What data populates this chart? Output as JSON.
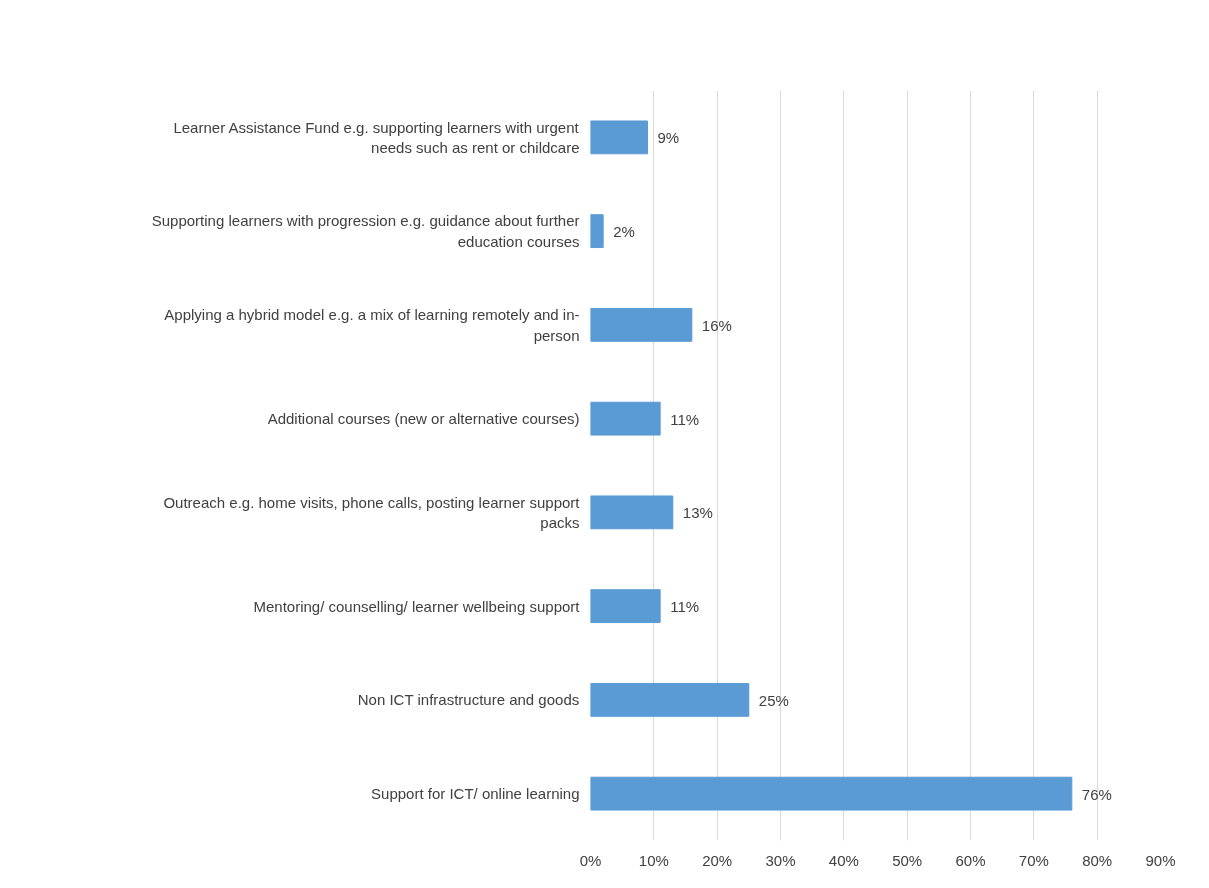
{
  "chart_data": {
    "type": "bar",
    "orientation": "horizontal",
    "categories": [
      "Learner Assistance Fund e.g. supporting learners with urgent needs such as rent or childcare",
      "Supporting learners with progression e.g. guidance about further education courses",
      "Applying a hybrid model e.g. a mix of learning remotely and in-person",
      "Additional courses (new or alternative courses)",
      "Outreach e.g. home visits, phone calls, posting learner support packs",
      "Mentoring/ counselling/ learner wellbeing support",
      "Non ICT infrastructure and goods",
      "Support for ICT/ online learning"
    ],
    "values": [
      9,
      2,
      16,
      11,
      13,
      11,
      25,
      76
    ],
    "value_labels": [
      "9%",
      "2%",
      "16%",
      "11%",
      "13%",
      "11%",
      "25%",
      "76%"
    ],
    "color": "#5b9bd5",
    "xlim": [
      0,
      90
    ],
    "xticks": [
      {
        "value": 0,
        "label": "0%"
      },
      {
        "value": 10,
        "label": "10%"
      },
      {
        "value": 20,
        "label": "20%"
      },
      {
        "value": 30,
        "label": "30%"
      },
      {
        "value": 40,
        "label": "40%"
      },
      {
        "value": 50,
        "label": "50%"
      },
      {
        "value": 60,
        "label": "60%"
      },
      {
        "value": 70,
        "label": "70%"
      },
      {
        "value": 80,
        "label": "80%"
      },
      {
        "value": 90,
        "label": "90%"
      }
    ],
    "grid": "x"
  }
}
